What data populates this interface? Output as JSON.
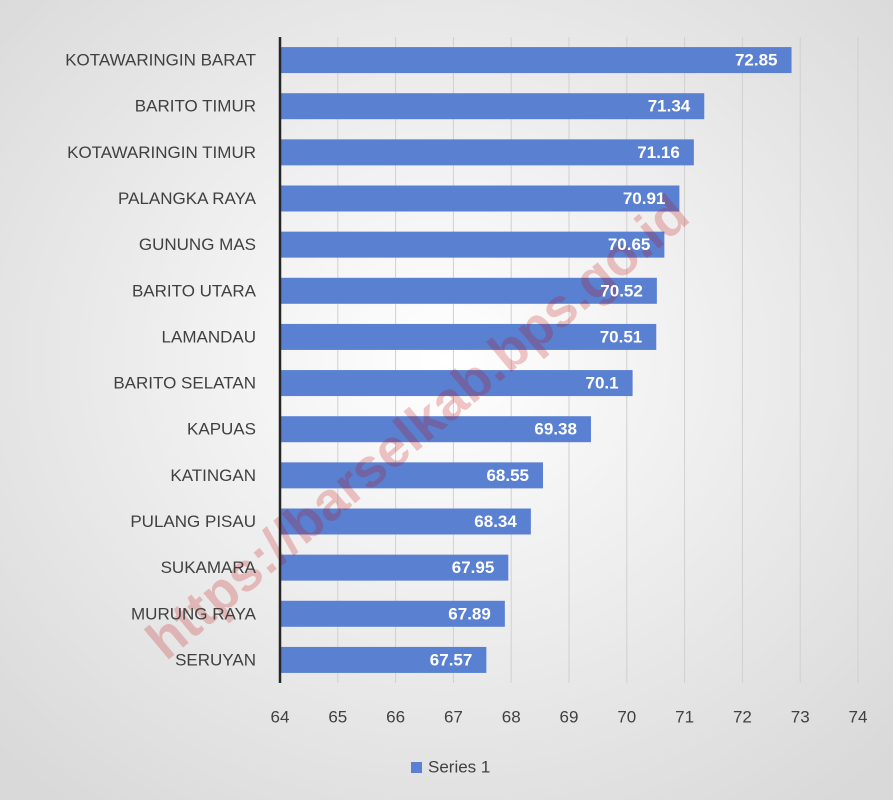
{
  "chart_data": {
    "type": "bar",
    "orientation": "horizontal",
    "categories": [
      "KOTAWARINGIN BARAT",
      "BARITO TIMUR",
      "KOTAWARINGIN TIMUR",
      "PALANGKA RAYA",
      "GUNUNG MAS",
      "BARITO UTARA",
      "LAMANDAU",
      "BARITO SELATAN",
      "KAPUAS",
      "KATINGAN",
      "PULANG PISAU",
      "SUKAMARA",
      "MURUNG RAYA",
      "SERUYAN"
    ],
    "series": [
      {
        "name": "Series 1",
        "color": "#5a80d2",
        "values": [
          72.85,
          71.34,
          71.16,
          70.91,
          70.65,
          70.52,
          70.51,
          70.1,
          69.38,
          68.55,
          68.34,
          67.95,
          67.89,
          67.57
        ]
      }
    ],
    "xlim": [
      64,
      74
    ],
    "xticks": [
      64,
      65,
      66,
      67,
      68,
      69,
      70,
      71,
      72,
      73,
      74
    ],
    "grid": true,
    "legend": "bottom",
    "watermark": "https://barselkab.bps.go.id"
  }
}
